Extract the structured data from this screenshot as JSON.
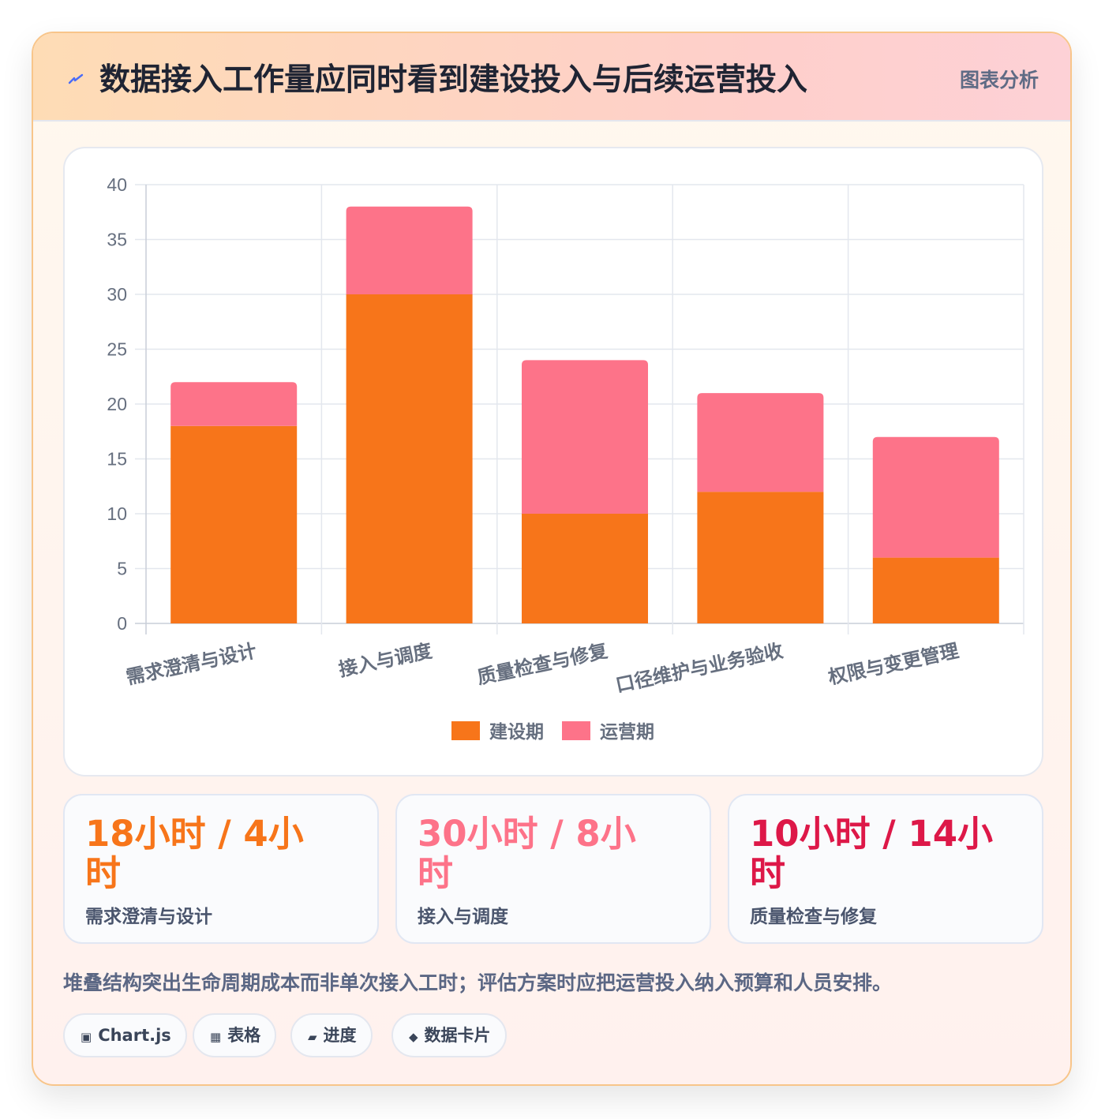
{
  "header": {
    "icon": "bolt-icon",
    "title": "数据接入工作量应同时看到建设投入与后续运营投入",
    "tag": "图表分析"
  },
  "chart_data": {
    "type": "bar",
    "stacked": true,
    "categories": [
      "需求澄清与设计",
      "接入与调度",
      "质量检查与修复",
      "口径维护与业务验收",
      "权限与变更管理"
    ],
    "series": [
      {
        "name": "建设期",
        "values": [
          18,
          30,
          10,
          12,
          6
        ],
        "color": "#f7751a"
      },
      {
        "name": "运营期",
        "values": [
          4,
          8,
          14,
          9,
          11
        ],
        "color": "#fd7389"
      }
    ],
    "ylim": [
      0,
      40
    ],
    "yticks": [
      0,
      5,
      10,
      15,
      20,
      25,
      30,
      35,
      40
    ],
    "grid": true,
    "legend": "bottom-center"
  },
  "stats": [
    {
      "value": "18小时 / 4小时",
      "label": "需求澄清与设计",
      "color": "#f7751a"
    },
    {
      "value": "30小时 / 8小时",
      "label": "接入与调度",
      "color": "#fd7389"
    },
    {
      "value": "10小时 / 14小时",
      "label": "质量检查与修复",
      "color": "#dd1848"
    }
  ],
  "note": "堆叠结构突出生命周期成本而非单次接入工时；评估方案时应把运营投入纳入预算和人员安排。",
  "chips": [
    {
      "icon": "chart-icon",
      "glyph": "▣",
      "label": "Chart.js"
    },
    {
      "icon": "table-icon",
      "glyph": "▦",
      "label": "表格"
    },
    {
      "icon": "progress-icon",
      "glyph": "▰",
      "label": "进度"
    },
    {
      "icon": "diamond-icon",
      "glyph": "◆",
      "label": "数据卡片"
    }
  ]
}
